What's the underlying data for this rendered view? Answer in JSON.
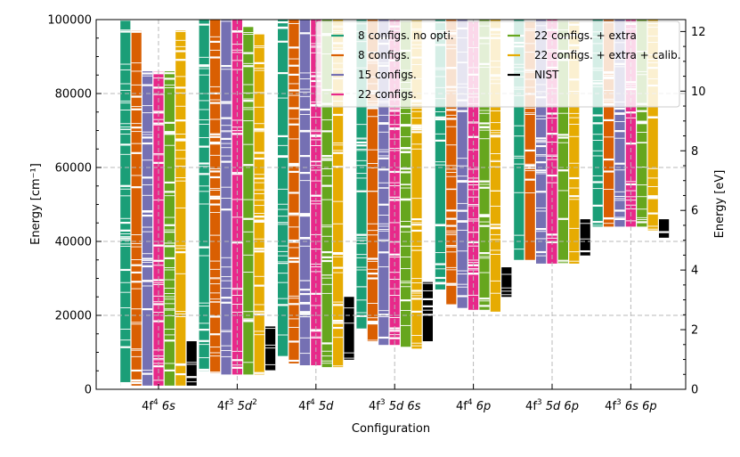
{
  "chart_data": {
    "type": "scatter",
    "xlabel": "Configuration",
    "ylabel": "Energy [cm⁻¹]",
    "ylabel_right": "Energy [eV]",
    "ylim": [
      0,
      100000
    ],
    "ylim_right": [
      0,
      12.4
    ],
    "yticks": [
      "0",
      "20000",
      "40000",
      "60000",
      "80000",
      "100000"
    ],
    "yticks_right": [
      "0",
      "2",
      "4",
      "6",
      "8",
      "10",
      "12"
    ],
    "grid": true,
    "legend_position": "top-right",
    "categories": [
      {
        "base": "4f",
        "sup": "4",
        "rest": " 6s",
        "tail": ""
      },
      {
        "base": "4f",
        "sup": "3",
        "rest": " 5d",
        "tail": "2"
      },
      {
        "base": "4f",
        "sup": "4",
        "rest": " 5d",
        "tail": ""
      },
      {
        "base": "4f",
        "sup": "3",
        "rest": " 5d 6s",
        "tail": ""
      },
      {
        "base": "4f",
        "sup": "4",
        "rest": " 6p",
        "tail": ""
      },
      {
        "base": "4f",
        "sup": "3",
        "rest": " 5d 6p",
        "tail": ""
      },
      {
        "base": "4f",
        "sup": "3",
        "rest": " 6s 6p",
        "tail": ""
      }
    ],
    "series": [
      {
        "name": "8 configs. no opti.",
        "color": "#1b9e77"
      },
      {
        "name": "8 configs.",
        "color": "#d95f02"
      },
      {
        "name": "15 configs.",
        "color": "#7570b3"
      },
      {
        "name": "22 configs.",
        "color": "#e7298a"
      },
      {
        "name": "22 configs. + extra",
        "color": "#66a61e"
      },
      {
        "name": "22 configs. + extra + calib.",
        "color": "#e6ab02"
      },
      {
        "name": "NIST",
        "color": "#000000"
      }
    ],
    "level_ranges_cm1": [
      [
        [
          1000,
          100000
        ],
        [
          1000,
          97000
        ],
        [
          1000,
          86000
        ],
        [
          1000,
          86000
        ],
        [
          1000,
          86000
        ],
        [
          1000,
          97000
        ],
        [
          1000,
          13000
        ]
      ],
      [
        [
          5000,
          100000
        ],
        [
          4500,
          100000
        ],
        [
          4000,
          100000
        ],
        [
          4000,
          100000
        ],
        [
          4000,
          98000
        ],
        [
          4000,
          96000
        ],
        [
          5000,
          17000
        ]
      ],
      [
        [
          9000,
          100000
        ],
        [
          7000,
          100000
        ],
        [
          6500,
          100000
        ],
        [
          6500,
          100000
        ],
        [
          6000,
          100000
        ],
        [
          6000,
          100000
        ],
        [
          8000,
          25000
        ]
      ],
      [
        [
          16000,
          100000
        ],
        [
          13000,
          100000
        ],
        [
          12000,
          100000
        ],
        [
          12000,
          100000
        ],
        [
          11500,
          100000
        ],
        [
          11000,
          100000
        ],
        [
          13000,
          29000
        ]
      ],
      [
        [
          27000,
          100000
        ],
        [
          23000,
          100000
        ],
        [
          22000,
          100000
        ],
        [
          21500,
          100000
        ],
        [
          21500,
          100000
        ],
        [
          21000,
          100000
        ],
        [
          25000,
          33000
        ]
      ],
      [
        [
          35000,
          100000
        ],
        [
          35000,
          100000
        ],
        [
          34000,
          100000
        ],
        [
          34000,
          100000
        ],
        [
          34000,
          100000
        ],
        [
          34000,
          100000
        ],
        [
          36000,
          46000
        ]
      ],
      [
        [
          44000,
          100000
        ],
        [
          44000,
          100000
        ],
        [
          44000,
          100000
        ],
        [
          44000,
          100000
        ],
        [
          44000,
          100000
        ],
        [
          43000,
          100000
        ],
        [
          41000,
          46000
        ]
      ]
    ]
  }
}
